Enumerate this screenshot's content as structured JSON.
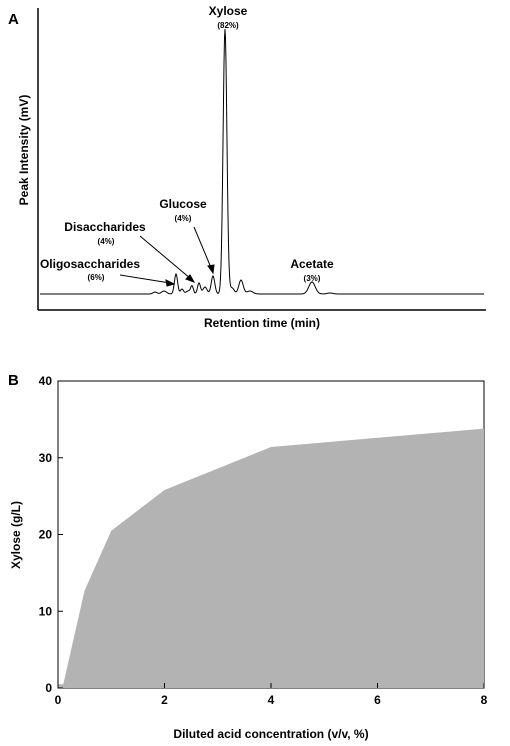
{
  "panels": {
    "a": {
      "letter": "A"
    },
    "b": {
      "letter": "B"
    }
  },
  "chart_data": [
    {
      "type": "line",
      "panel": "A",
      "title": "",
      "xlabel": "Retention time (min)",
      "ylabel": "Peak Intensity (mV)",
      "grid": false,
      "line_color": "#000000",
      "peaks": [
        {
          "name": "Oligosaccharides",
          "percent": "(6%)"
        },
        {
          "name": "Disaccharides",
          "percent": "(4%)"
        },
        {
          "name": "Glucose",
          "percent": "(4%)"
        },
        {
          "name": "Xylose",
          "percent": "(82%)"
        },
        {
          "name": "Acetate",
          "percent": "(3%)"
        }
      ]
    },
    {
      "type": "area",
      "panel": "B",
      "title": "",
      "xlabel": "Diluted acid concentration (v/v, %)",
      "ylabel": "Xylose (g/L)",
      "x": [
        0,
        0.1,
        0.5,
        1,
        2,
        4,
        8
      ],
      "y": [
        0.5,
        0.5,
        12.7,
        20.5,
        25.8,
        31.4,
        33.8
      ],
      "xlim": [
        0,
        8
      ],
      "ylim": [
        0,
        40
      ],
      "xticks": [
        "0",
        "2",
        "4",
        "6",
        "8"
      ],
      "yticks": [
        "0",
        "10",
        "20",
        "30",
        "40"
      ],
      "fill_color": "#b3b3b3",
      "grid": false
    }
  ]
}
